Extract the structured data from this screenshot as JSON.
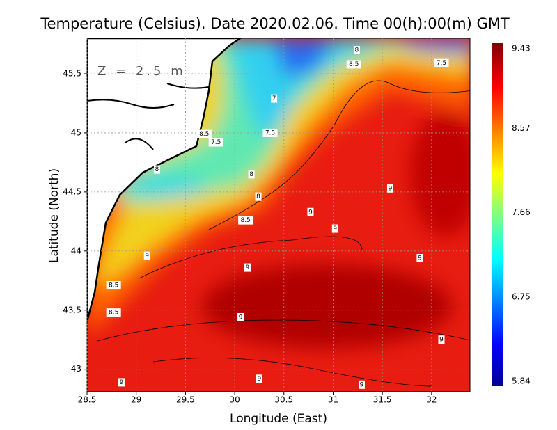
{
  "chart_data": {
    "type": "heatmap",
    "title": "Temperature (Celsius). Date 2020.02.06. Time 00(h):00(m) GMT",
    "annotation": "Z = 2.5 m",
    "xlabel": "Longitude (East)",
    "ylabel": "Latitude (North)",
    "xlim": [
      28.5,
      32.39
    ],
    "ylim": [
      42.81,
      45.8
    ],
    "xticks": [
      28.5,
      29,
      29.5,
      30,
      30.5,
      31,
      31.5,
      32
    ],
    "yticks": [
      43,
      43.5,
      44,
      44.5,
      45,
      45.5
    ],
    "grid": true,
    "colorbar": {
      "clim": [
        5.84,
        9.43
      ],
      "ticks": [
        9.43,
        8.57,
        7.66,
        6.75,
        5.84
      ]
    },
    "contour_labels": [
      {
        "label": "8",
        "lon": 31.24,
        "lat": 45.7
      },
      {
        "label": "8.5",
        "lon": 31.21,
        "lat": 45.58
      },
      {
        "label": "7.5",
        "lon": 32.1,
        "lat": 45.59
      },
      {
        "label": "7",
        "lon": 30.4,
        "lat": 45.29
      },
      {
        "label": "8.5",
        "lon": 29.69,
        "lat": 44.99
      },
      {
        "label": "7.5",
        "lon": 29.81,
        "lat": 44.92
      },
      {
        "label": "7.5",
        "lon": 30.36,
        "lat": 45.0
      },
      {
        "label": "8",
        "lon": 29.21,
        "lat": 44.69
      },
      {
        "label": "8",
        "lon": 30.17,
        "lat": 44.65
      },
      {
        "label": "8",
        "lon": 30.24,
        "lat": 44.46
      },
      {
        "label": "8.5",
        "lon": 30.11,
        "lat": 44.26
      },
      {
        "label": "9",
        "lon": 31.58,
        "lat": 44.53
      },
      {
        "label": "9",
        "lon": 30.77,
        "lat": 44.33
      },
      {
        "label": "9",
        "lon": 31.02,
        "lat": 44.19
      },
      {
        "label": "9",
        "lon": 29.11,
        "lat": 43.96
      },
      {
        "label": "9",
        "lon": 30.13,
        "lat": 43.86
      },
      {
        "label": "9",
        "lon": 31.88,
        "lat": 43.94
      },
      {
        "label": "8.5",
        "lon": 28.77,
        "lat": 43.71
      },
      {
        "label": "8.5",
        "lon": 28.77,
        "lat": 43.48
      },
      {
        "label": "9",
        "lon": 30.06,
        "lat": 43.44
      },
      {
        "label": "9",
        "lon": 32.1,
        "lat": 43.25
      },
      {
        "label": "9",
        "lon": 30.25,
        "lat": 42.92
      },
      {
        "label": "9",
        "lon": 28.85,
        "lat": 42.89
      },
      {
        "label": "9",
        "lon": 31.29,
        "lat": 42.87
      }
    ]
  }
}
